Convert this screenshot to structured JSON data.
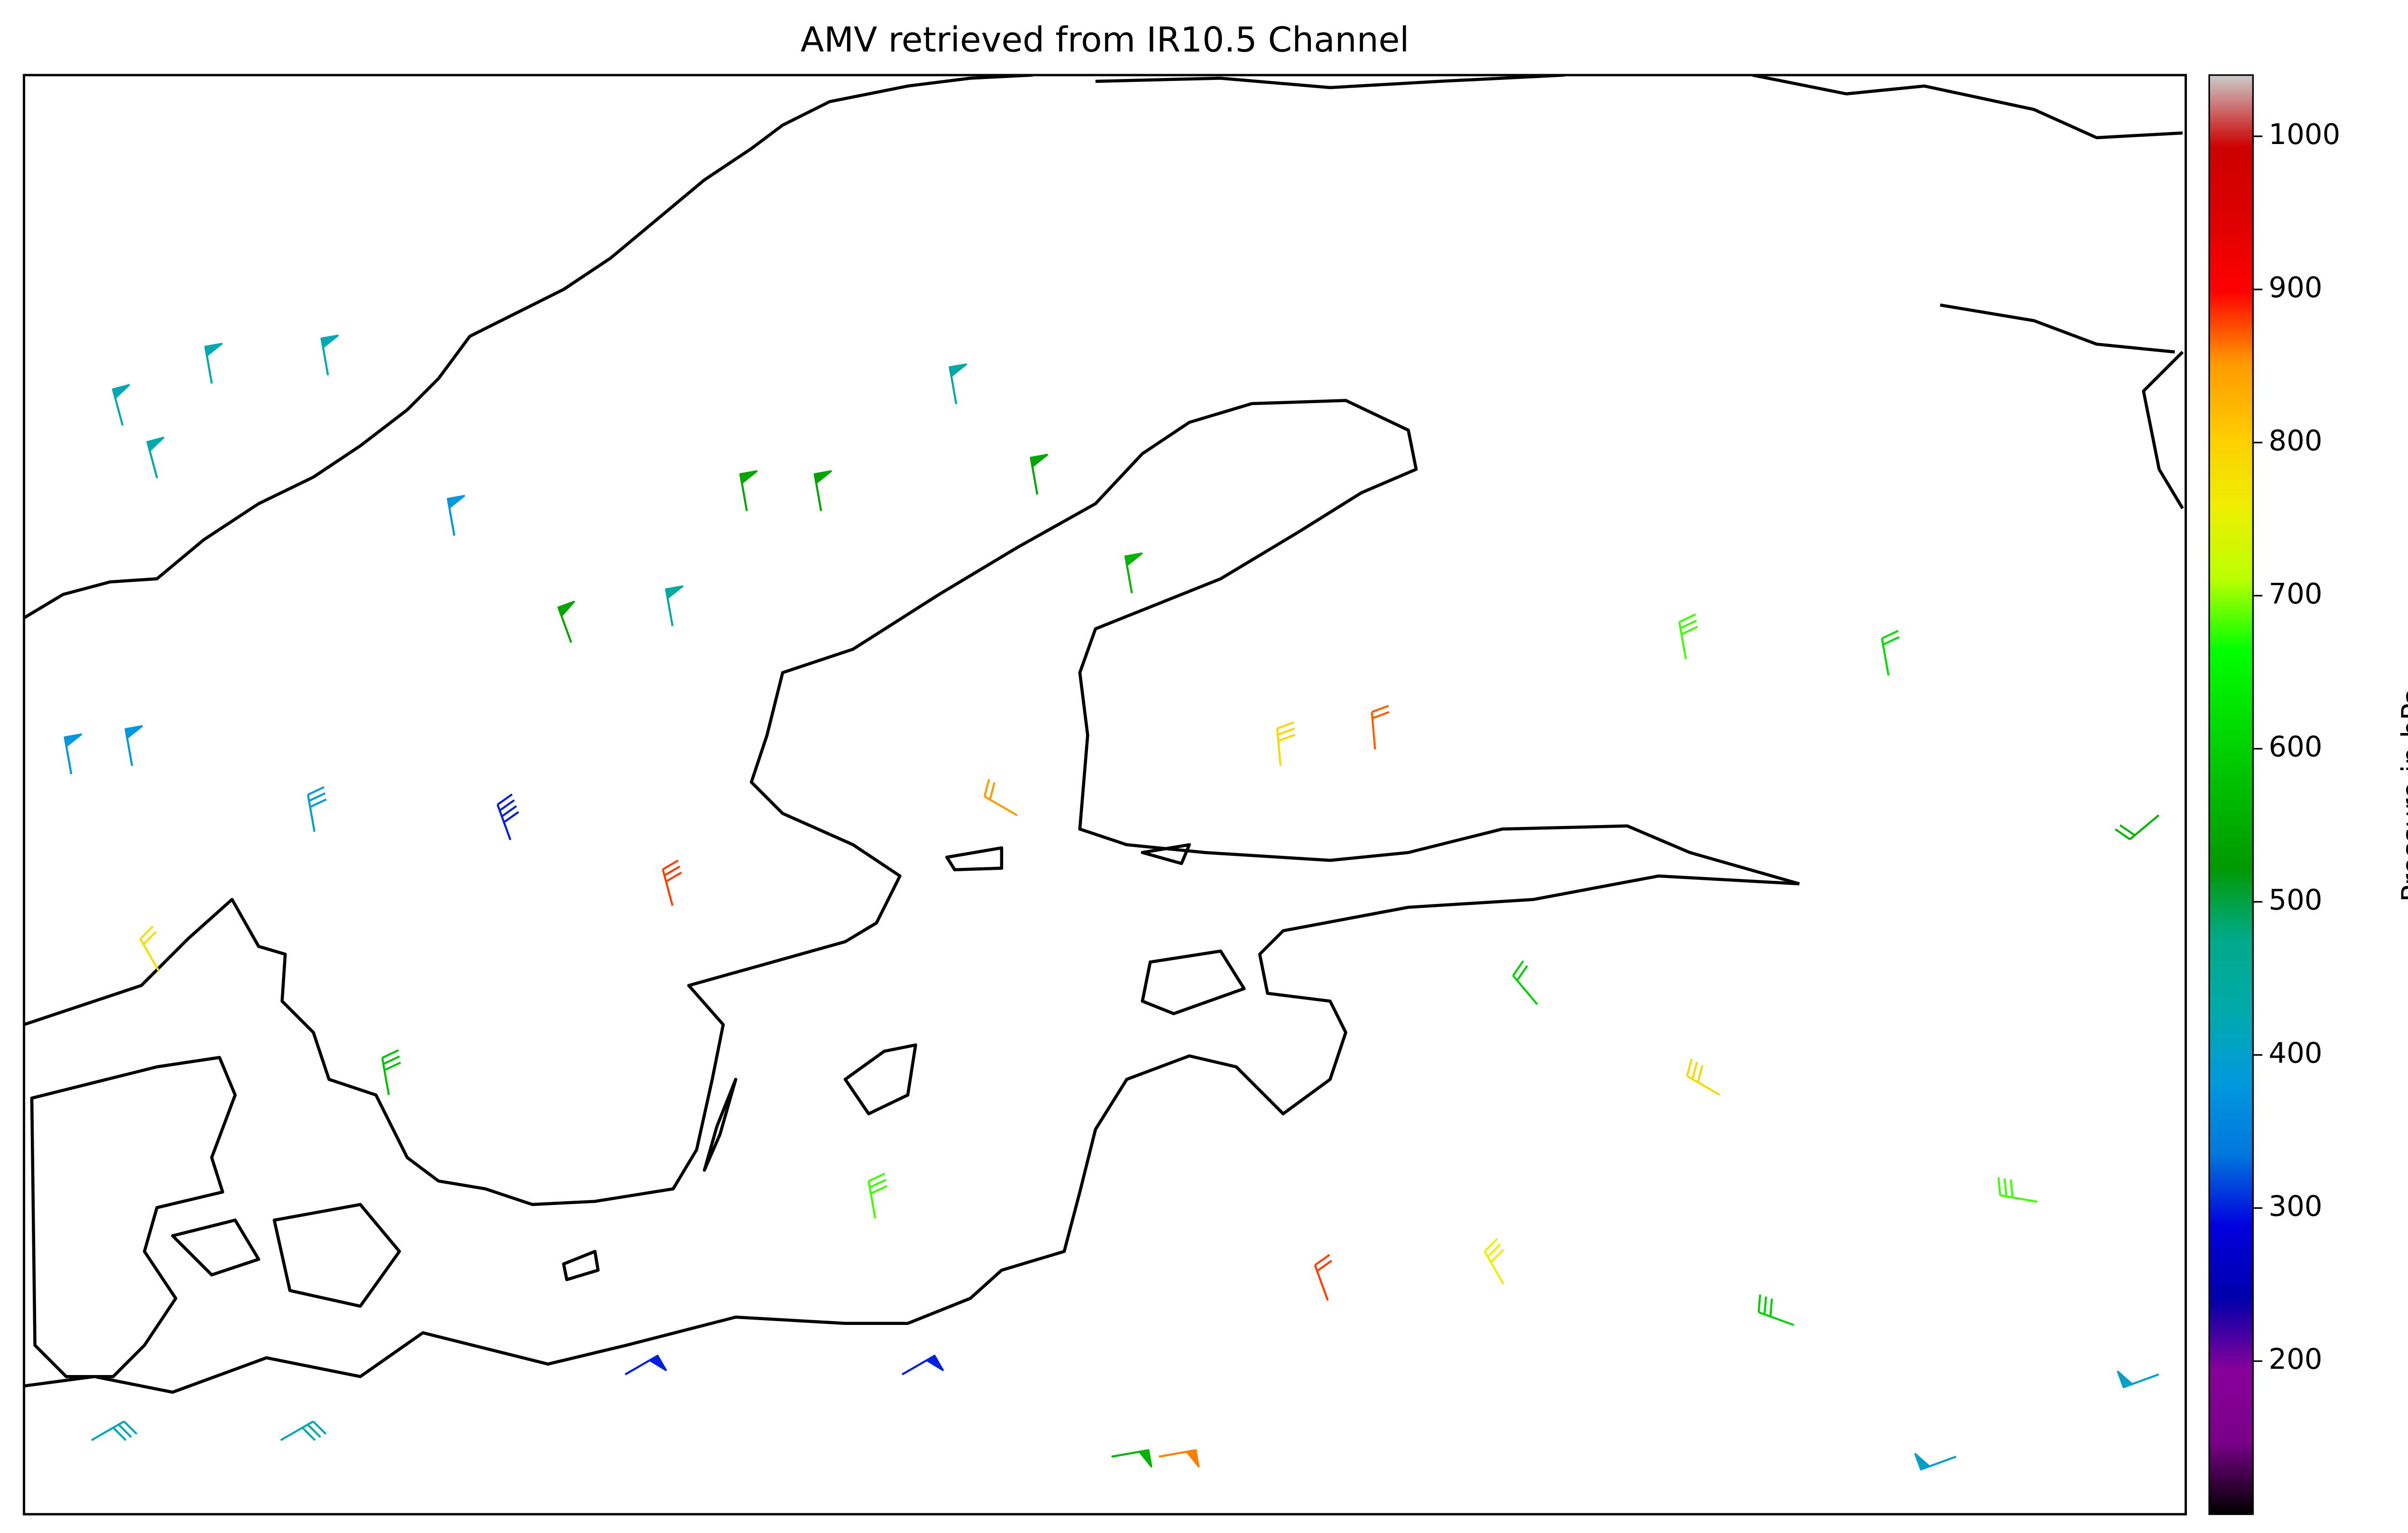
{
  "chart_data": {
    "type": "barbs",
    "title": "AMV retrieved from IR10.5 Channel",
    "colorbar_label": "Pressure in hPa",
    "xlim": [
      8,
      40
    ],
    "ylim": [
      53.5,
      71
    ],
    "clim": [
      100,
      1040
    ],
    "cticks": [
      200,
      300,
      400,
      500,
      600,
      700,
      800,
      900,
      1000
    ],
    "colormap": [
      "#000000",
      "#780088",
      "#880099",
      "#0000aa",
      "#0000dd",
      "#0077dd",
      "#0099dd",
      "#00aaaa",
      "#00aa88",
      "#009900",
      "#00bb00",
      "#00dd00",
      "#00ff00",
      "#bbff00",
      "#eeee00",
      "#ffcc00",
      "#ff9900",
      "#ff0000",
      "#dd0000",
      "#cc0000",
      "#cccccc"
    ],
    "barbs": [
      {
        "lon": 10.78,
        "lat": 67.25,
        "pressure": 420,
        "speed": 50,
        "direction": 350
      },
      {
        "lon": 12.5,
        "lat": 67.35,
        "pressure": 420,
        "speed": 50,
        "direction": 350
      },
      {
        "lon": 9.46,
        "lat": 66.74,
        "pressure": 420,
        "speed": 50,
        "direction": 345
      },
      {
        "lon": 9.97,
        "lat": 66.1,
        "pressure": 430,
        "speed": 50,
        "direction": 345
      },
      {
        "lon": 14.37,
        "lat": 65.4,
        "pressure": 380,
        "speed": 50,
        "direction": 350
      },
      {
        "lon": 17.6,
        "lat": 64.3,
        "pressure": 440,
        "speed": 50,
        "direction": 350
      },
      {
        "lon": 16.1,
        "lat": 64.1,
        "pressure": 540,
        "speed": 50,
        "direction": 340
      },
      {
        "lon": 18.7,
        "lat": 65.7,
        "pressure": 540,
        "speed": 50,
        "direction": 350
      },
      {
        "lon": 19.8,
        "lat": 65.7,
        "pressure": 540,
        "speed": 50,
        "direction": 350
      },
      {
        "lon": 23.0,
        "lat": 65.9,
        "pressure": 540,
        "speed": 50,
        "direction": 350
      },
      {
        "lon": 24.4,
        "lat": 64.7,
        "pressure": 560,
        "speed": 50,
        "direction": 350
      },
      {
        "lon": 21.8,
        "lat": 67.0,
        "pressure": 440,
        "speed": 50,
        "direction": 350
      },
      {
        "lon": 9.6,
        "lat": 62.6,
        "pressure": 380,
        "speed": 50,
        "direction": 350
      },
      {
        "lon": 8.7,
        "lat": 62.5,
        "pressure": 380,
        "speed": 50,
        "direction": 350
      },
      {
        "lon": 15.2,
        "lat": 61.7,
        "pressure": 300,
        "speed": 40,
        "direction": 340
      },
      {
        "lon": 12.3,
        "lat": 61.8,
        "pressure": 390,
        "speed": 30,
        "direction": 350
      },
      {
        "lon": 26.6,
        "lat": 62.6,
        "pressure": 790,
        "speed": 30,
        "direction": 355
      },
      {
        "lon": 28.0,
        "lat": 62.8,
        "pressure": 870,
        "speed": 20,
        "direction": 355
      },
      {
        "lon": 32.6,
        "lat": 63.9,
        "pressure": 680,
        "speed": 30,
        "direction": 350
      },
      {
        "lon": 35.6,
        "lat": 63.7,
        "pressure": 620,
        "speed": 20,
        "direction": 350
      },
      {
        "lon": 22.7,
        "lat": 62.0,
        "pressure": 850,
        "speed": 20,
        "direction": 300
      },
      {
        "lon": 17.6,
        "lat": 60.9,
        "pressure": 880,
        "speed": 30,
        "direction": 345
      },
      {
        "lon": 24.8,
        "lat": 54.2,
        "pressure": 860,
        "speed": 50,
        "direction": 80
      },
      {
        "lon": 24.1,
        "lat": 54.2,
        "pressure": 560,
        "speed": 50,
        "direction": 80
      },
      {
        "lon": 16.9,
        "lat": 55.2,
        "pressure": 300,
        "speed": 50,
        "direction": 60
      },
      {
        "lon": 21.0,
        "lat": 55.2,
        "pressure": 300,
        "speed": 50,
        "direction": 60
      },
      {
        "lon": 39.6,
        "lat": 55.2,
        "pressure": 400,
        "speed": 50,
        "direction": 250
      },
      {
        "lon": 36.6,
        "lat": 54.2,
        "pressure": 400,
        "speed": 50,
        "direction": 250
      },
      {
        "lon": 29.9,
        "lat": 56.3,
        "pressure": 760,
        "speed": 30,
        "direction": 330
      },
      {
        "lon": 33.1,
        "lat": 58.6,
        "pressure": 790,
        "speed": 30,
        "direction": 300
      },
      {
        "lon": 37.8,
        "lat": 57.3,
        "pressure": 680,
        "speed": 30,
        "direction": 280
      },
      {
        "lon": 34.2,
        "lat": 55.8,
        "pressure": 600,
        "speed": 30,
        "direction": 290
      },
      {
        "lon": 27.3,
        "lat": 56.1,
        "pressure": 880,
        "speed": 20,
        "direction": 340
      },
      {
        "lon": 20.6,
        "lat": 57.1,
        "pressure": 680,
        "speed": 30,
        "direction": 350
      },
      {
        "lon": 13.4,
        "lat": 58.6,
        "pressure": 580,
        "speed": 30,
        "direction": 350
      },
      {
        "lon": 10.0,
        "lat": 60.1,
        "pressure": 780,
        "speed": 20,
        "direction": 330
      },
      {
        "lon": 9.0,
        "lat": 54.4,
        "pressure": 420,
        "speed": 30,
        "direction": 60
      },
      {
        "lon": 11.8,
        "lat": 54.4,
        "pressure": 420,
        "speed": 30,
        "direction": 60
      },
      {
        "lon": 30.4,
        "lat": 59.7,
        "pressure": 600,
        "speed": 20,
        "direction": 320
      },
      {
        "lon": 39.6,
        "lat": 62.0,
        "pressure": 560,
        "speed": 20,
        "direction": 230
      }
    ]
  }
}
